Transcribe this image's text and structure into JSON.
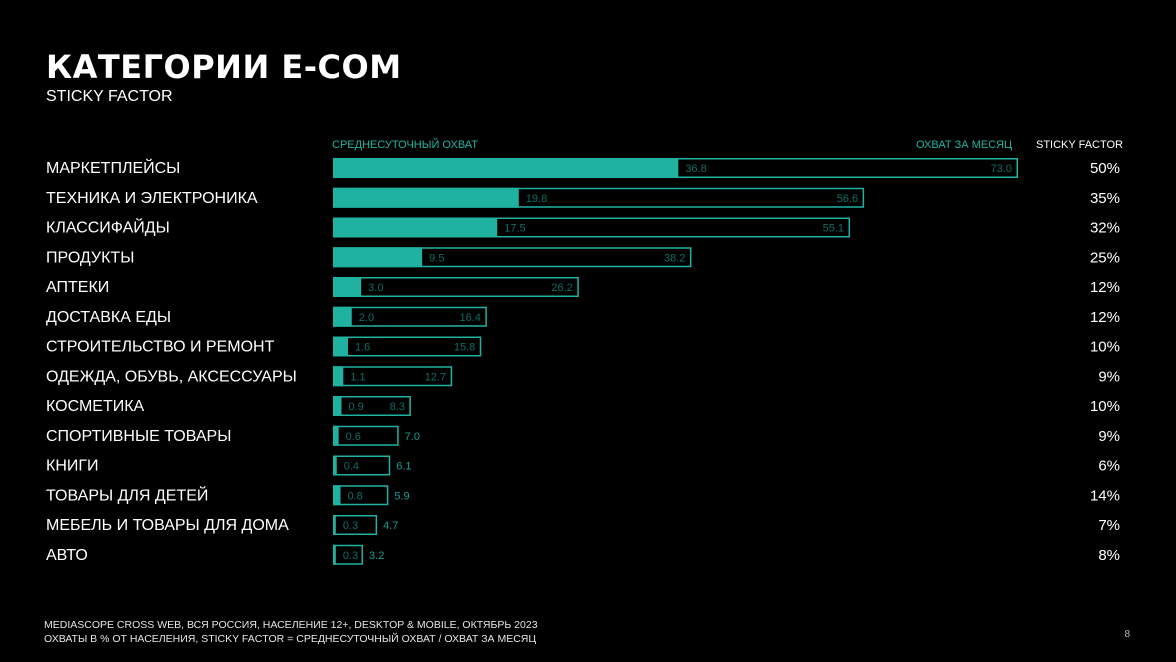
{
  "header": {
    "title": "КАТЕГОРИИ E-COM",
    "subtitle": "STICKY FACTOR"
  },
  "columns": {
    "daily": "СРЕДНЕСУТОЧНЫЙ ОХВАТ",
    "monthly": "ОХВАТ ЗА МЕСЯЦ",
    "sticky": "STICKY FACTOR"
  },
  "colors": {
    "accent": "#20b2a0",
    "background": "#000000"
  },
  "chart_data": {
    "type": "bar",
    "orientation": "horizontal",
    "xlim": [
      0,
      73
    ],
    "categories": [
      "МАРКЕТПЛЕЙСЫ",
      "ТЕХНИКА И ЭЛЕКТРОНИКА",
      "КЛАССИФАЙДЫ",
      "ПРОДУКТЫ",
      "АПТЕКИ",
      "ДОСТАВКА ЕДЫ",
      "СТРОИТЕЛЬСТВО И РЕМОНТ",
      "ОДЕЖДА, ОБУВЬ, АКСЕССУАРЫ",
      "КОСМЕТИКА",
      "СПОРТИВНЫЕ ТОВАРЫ",
      "КНИГИ",
      "ТОВАРЫ ДЛЯ ДЕТЕЙ",
      "МЕБЕЛЬ И ТОВАРЫ ДЛЯ ДОМА",
      "АВТО"
    ],
    "series": [
      {
        "name": "СРЕДНЕСУТОЧНЫЙ ОХВАТ",
        "values": [
          36.8,
          19.8,
          17.5,
          9.5,
          3.0,
          2.0,
          1.6,
          1.1,
          0.9,
          0.6,
          0.4,
          0.8,
          0.3,
          0.3
        ]
      },
      {
        "name": "ОХВАТ ЗА МЕСЯЦ",
        "values": [
          73.0,
          56.6,
          55.1,
          38.2,
          26.2,
          16.4,
          15.8,
          12.7,
          8.3,
          7.0,
          6.1,
          5.9,
          4.7,
          3.2
        ]
      }
    ],
    "sticky_factor": [
      "50%",
      "35%",
      "32%",
      "25%",
      "12%",
      "12%",
      "10%",
      "9%",
      "10%",
      "9%",
      "6%",
      "14%",
      "7%",
      "8%"
    ]
  },
  "footnotes": [
    "MEDIASCOPE CROSS WEB, ВСЯ РОССИЯ, НАСЕЛЕНИЕ 12+, DESKTOP & MOBILE, ОКТЯБРЬ 2023",
    "ОХВАТЫ В % ОТ НАСЕЛЕНИЯ, STICKY FACTOR = СРЕДНЕСУТОЧНЫЙ ОХВАТ / ОХВАТ ЗА МЕСЯЦ"
  ],
  "page_number": "8"
}
